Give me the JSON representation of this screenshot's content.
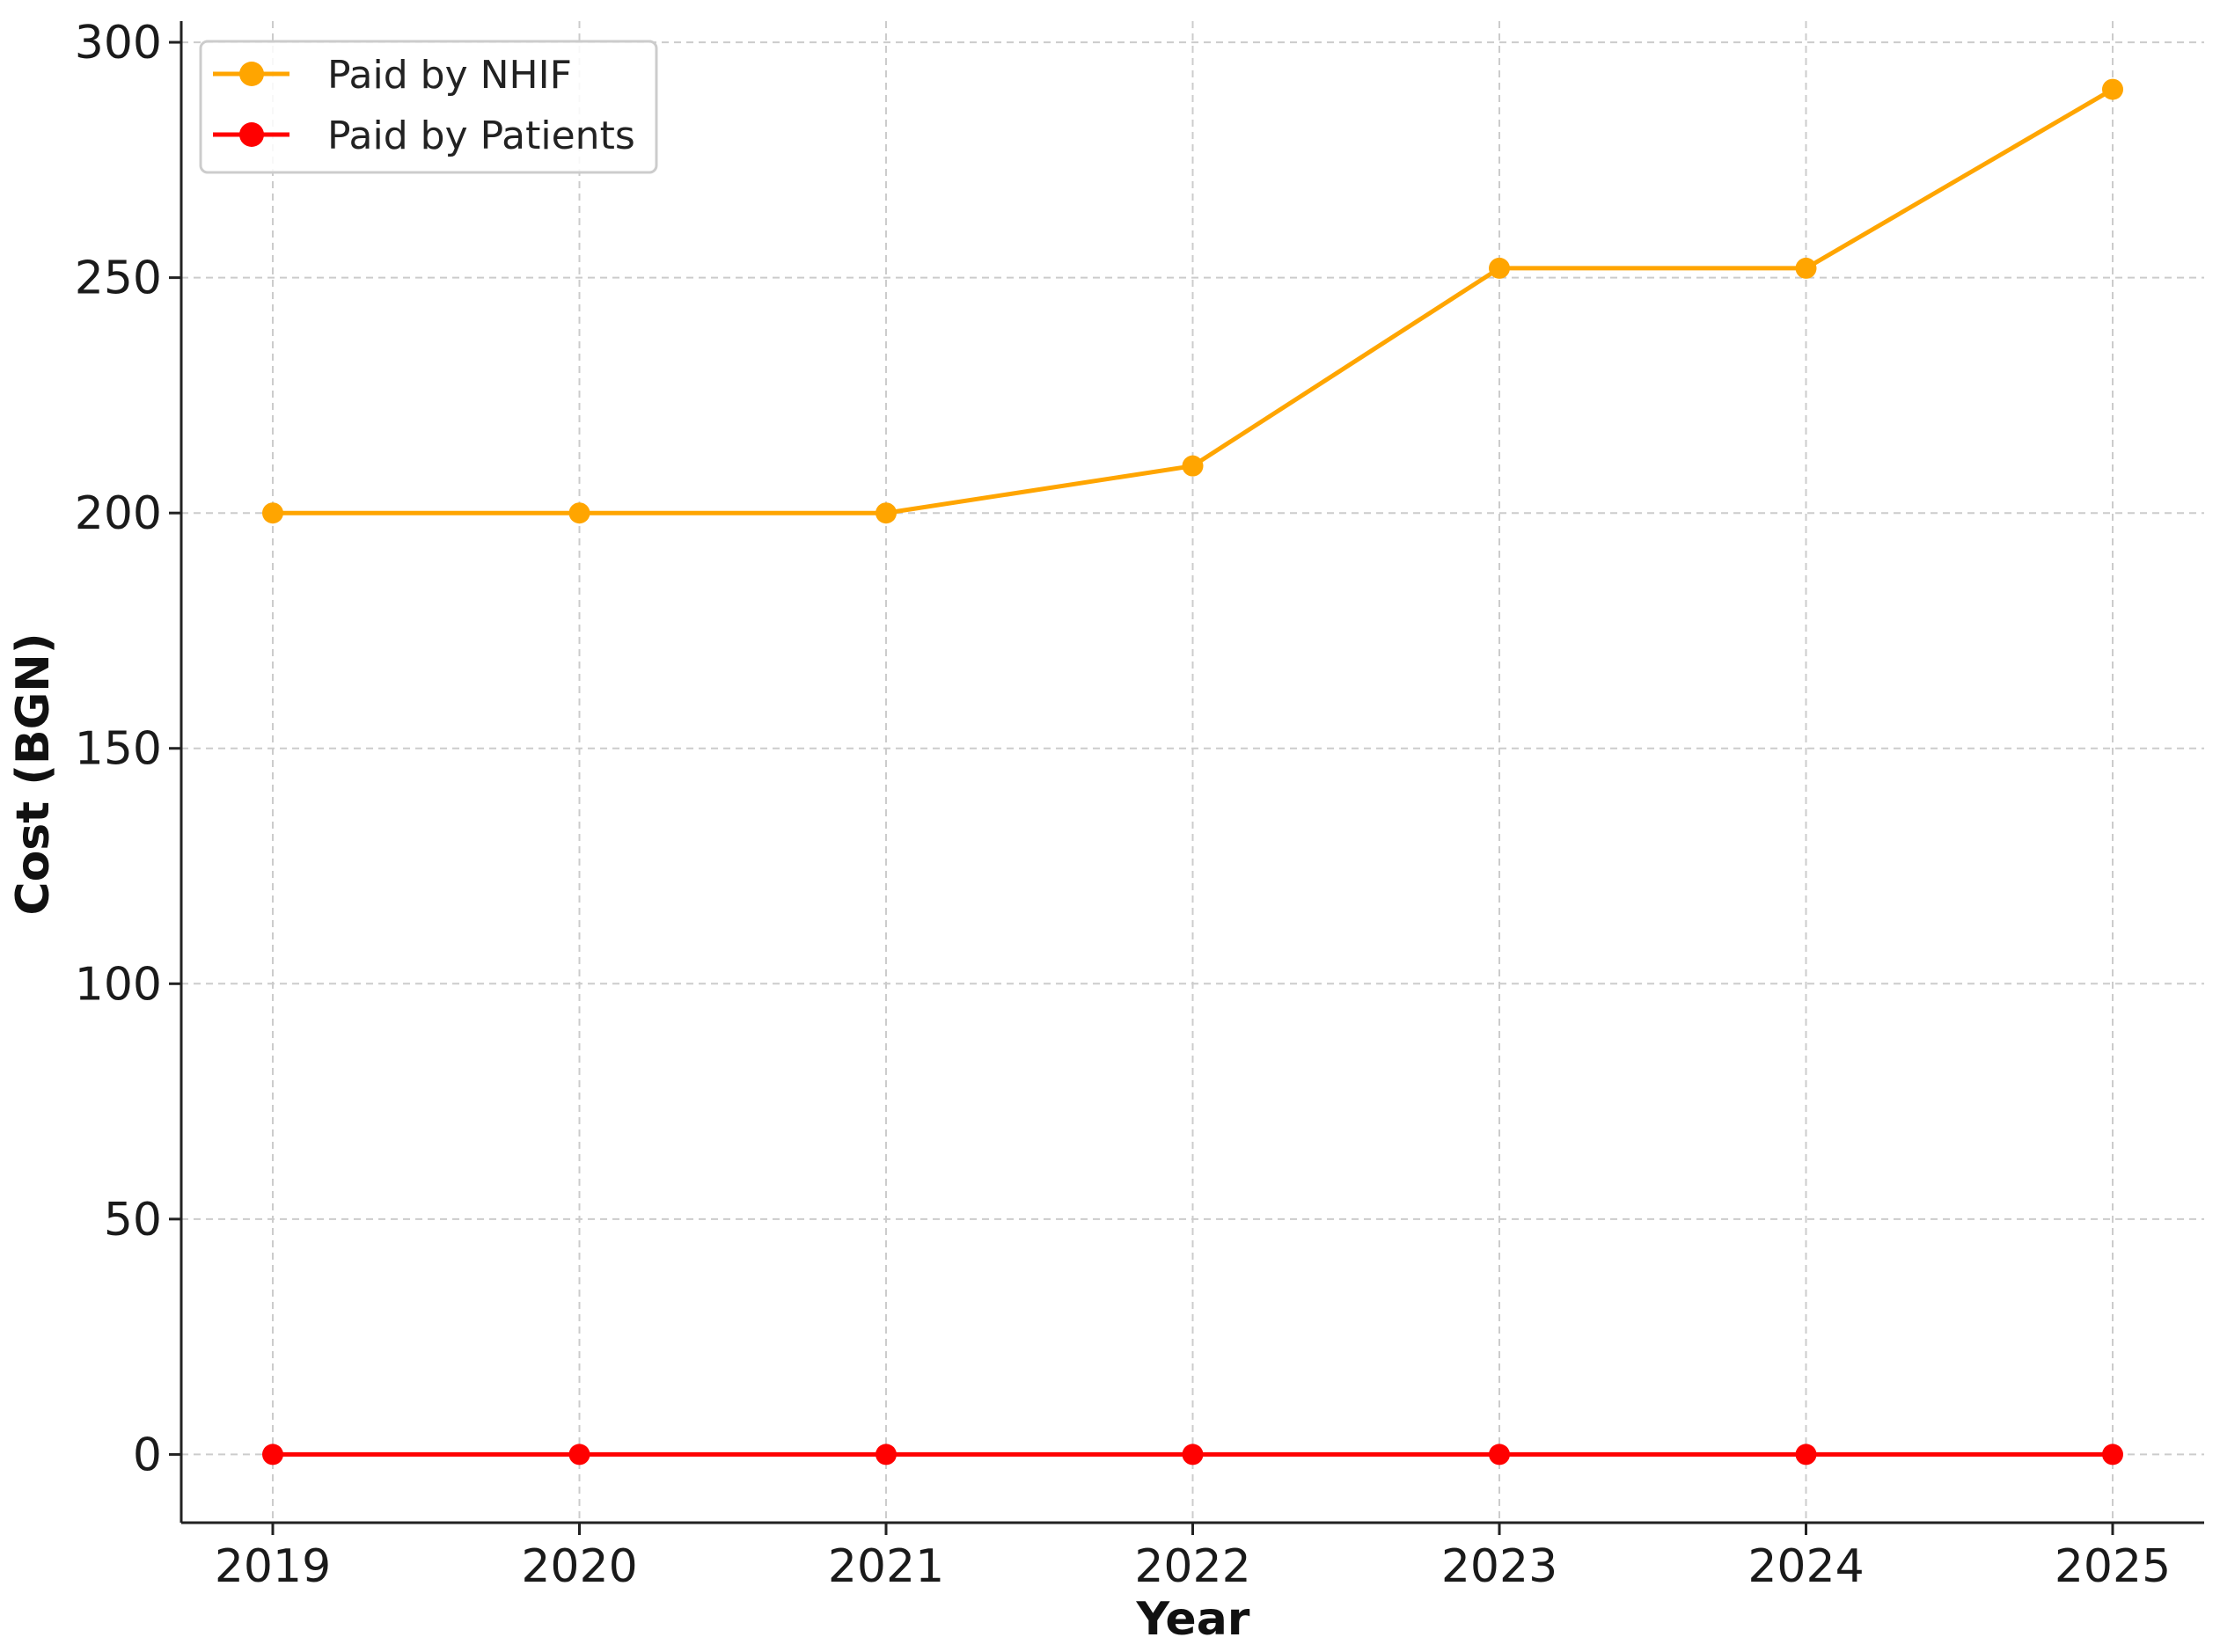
{
  "chart_data": {
    "type": "line",
    "title": "",
    "xlabel": "Year",
    "ylabel": "Cost (BGN)",
    "categories": [
      "2019",
      "2020",
      "2021",
      "2022",
      "2023",
      "2024",
      "2025"
    ],
    "series": [
      {
        "name": "Paid by NHIF",
        "color": "#FFA500",
        "values": [
          200,
          200,
          200,
          210,
          252,
          252,
          290
        ]
      },
      {
        "name": "Paid by Patients",
        "color": "#FF0000",
        "values": [
          0,
          0,
          0,
          0,
          0,
          0,
          0
        ]
      }
    ],
    "yticks": [
      "0",
      "50",
      "100",
      "150",
      "200",
      "250",
      "300"
    ],
    "ylim": [
      -14.5,
      304.5
    ],
    "grid": true,
    "legend": "top-left"
  }
}
